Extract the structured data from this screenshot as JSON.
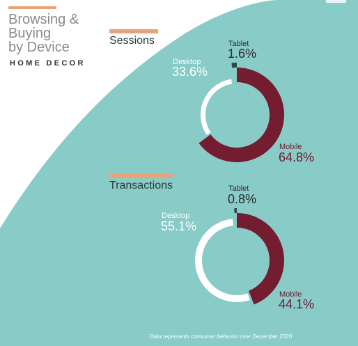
{
  "header": {
    "title_line1": "Browsing &",
    "title_line2": "Buying",
    "title_line3": "by Device",
    "subtitle": "HOME DECOR"
  },
  "footnote": "Data represents consumer behavior over December 2020",
  "colors": {
    "background_teal": "#88cbc7",
    "accent_orange": "#e8a476",
    "mobile": "#741c30",
    "desktop": "#ffffff",
    "tablet": "#2b4a52"
  },
  "chart_data": [
    {
      "type": "pie",
      "title": "Sessions",
      "donut": true,
      "slices": [
        {
          "label": "Mobile",
          "value": 64.8,
          "display": "64.8%",
          "color": "#741c30"
        },
        {
          "label": "Desktop",
          "value": 33.6,
          "display": "33.6%",
          "color": "#ffffff"
        },
        {
          "label": "Tablet",
          "value": 1.6,
          "display": "1.6%",
          "color": "#2b4a52"
        }
      ]
    },
    {
      "type": "pie",
      "title": "Transactions",
      "donut": true,
      "slices": [
        {
          "label": "Mobile",
          "value": 44.1,
          "display": "44.1%",
          "color": "#741c30"
        },
        {
          "label": "Desktop",
          "value": 55.1,
          "display": "55.1%",
          "color": "#ffffff"
        },
        {
          "label": "Tablet",
          "value": 0.8,
          "display": "0.8%",
          "color": "#2b4a52"
        }
      ]
    }
  ]
}
